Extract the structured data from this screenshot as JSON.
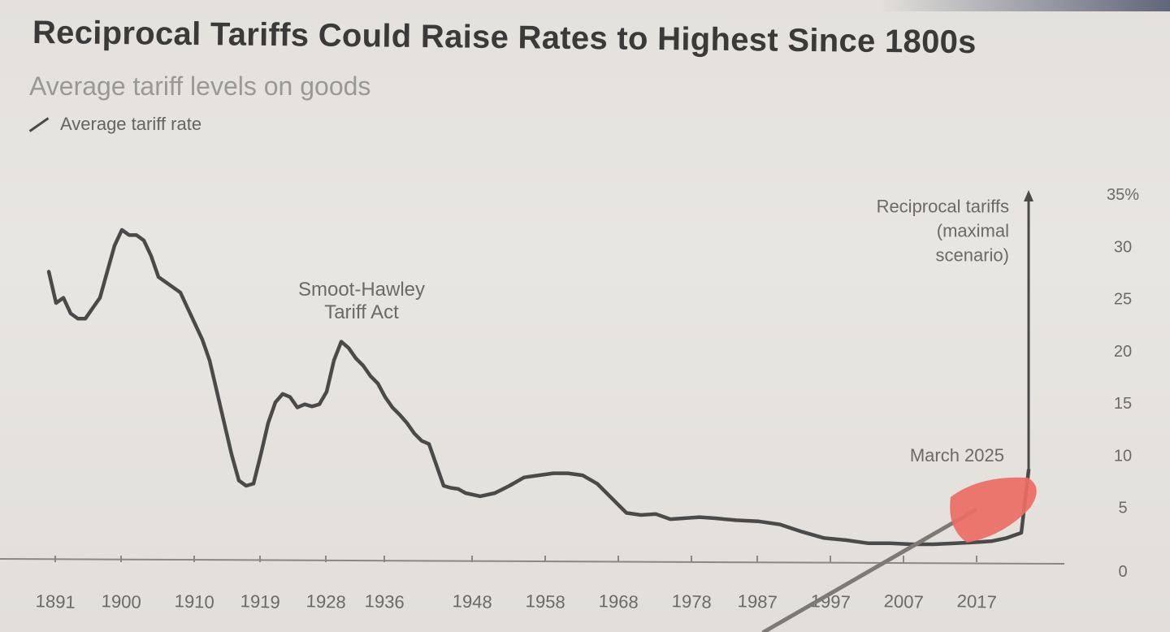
{
  "title": "Reciprocal Tariffs Could Raise Rates to Highest Since 1800s",
  "subtitle": "Average tariff levels on goods",
  "legend": {
    "label": "Average tariff rate"
  },
  "colors": {
    "line": "#4a4a48",
    "text": "#3a3a38",
    "muted": "#6c6a66",
    "pointer": "#ea6d63"
  },
  "chart_data": {
    "type": "line",
    "title": "Reciprocal Tariffs Could Raise Rates to Highest Since 1800s",
    "subtitle": "Average tariff levels on goods",
    "xlabel": "",
    "ylabel": "",
    "xlim": [
      1891,
      2027
    ],
    "ylim": [
      0,
      35
    ],
    "grid": false,
    "legend_position": "top-left",
    "y_ticks": [
      "0",
      "5",
      "10",
      "15",
      "20",
      "25",
      "30",
      "35%"
    ],
    "x_ticks": [
      "1891",
      "1900",
      "1910",
      "1919",
      "1928",
      "1936",
      "1948",
      "1958",
      "1968",
      "1978",
      "1987",
      "1997",
      "2007",
      "2017"
    ],
    "series": [
      {
        "name": "Average tariff rate",
        "x": [
          1891,
          1892,
          1893,
          1894,
          1895,
          1896,
          1897,
          1898,
          1899,
          1900,
          1901,
          1902,
          1903,
          1904,
          1905,
          1906,
          1907,
          1908,
          1909,
          1910,
          1911,
          1912,
          1913,
          1914,
          1915,
          1916,
          1917,
          1918,
          1919,
          1920,
          1921,
          1922,
          1923,
          1924,
          1925,
          1926,
          1927,
          1928,
          1929,
          1930,
          1931,
          1932,
          1933,
          1934,
          1935,
          1936,
          1937,
          1938,
          1939,
          1940,
          1941,
          1942,
          1943,
          1944,
          1945,
          1946,
          1947,
          1948,
          1950,
          1952,
          1954,
          1956,
          1958,
          1960,
          1962,
          1964,
          1966,
          1968,
          1970,
          1972,
          1974,
          1976,
          1978,
          1980,
          1982,
          1985,
          1988,
          1991,
          1994,
          1997,
          2000,
          2003,
          2006,
          2009,
          2012,
          2015,
          2018,
          2020,
          2022,
          2024,
          2025
        ],
        "values": [
          27.5,
          24.5,
          25,
          23.5,
          23,
          23,
          24,
          25,
          27.5,
          30,
          31.5,
          31,
          31,
          30.5,
          29,
          27,
          26.5,
          26,
          25.5,
          24,
          22.5,
          21,
          19,
          16,
          13,
          10,
          7.5,
          7,
          7.2,
          10,
          13,
          15,
          15.8,
          15.5,
          14.5,
          14.8,
          14.6,
          14.8,
          16,
          19,
          20.8,
          20.2,
          19.2,
          18.5,
          17.5,
          16.8,
          15.5,
          14.5,
          13.8,
          13,
          12,
          11.3,
          11,
          9,
          7,
          6.8,
          6.7,
          6.3,
          6,
          6.3,
          7,
          7.8,
          8,
          8.2,
          8.2,
          8,
          7.2,
          5.8,
          4.4,
          4.2,
          4.3,
          3.8,
          3.9,
          4,
          3.9,
          3.7,
          3.6,
          3.3,
          2.6,
          2,
          1.8,
          1.5,
          1.5,
          1.4,
          1.4,
          1.5,
          1.6,
          1.7,
          2,
          2.5,
          8.5
        ]
      },
      {
        "name": "Reciprocal tariffs (maximal scenario)",
        "x": [
          2025,
          2025
        ],
        "values": [
          8.5,
          35
        ]
      }
    ],
    "annotations": [
      {
        "text": "Smoot-Hawley Tariff Act",
        "x": 1936,
        "y": 23.5
      },
      {
        "text": "Reciprocal tariffs (maximal scenario)",
        "x": 2021,
        "y": 33
      },
      {
        "text": "March 2025",
        "x": 2017,
        "y": 9.5
      }
    ]
  }
}
